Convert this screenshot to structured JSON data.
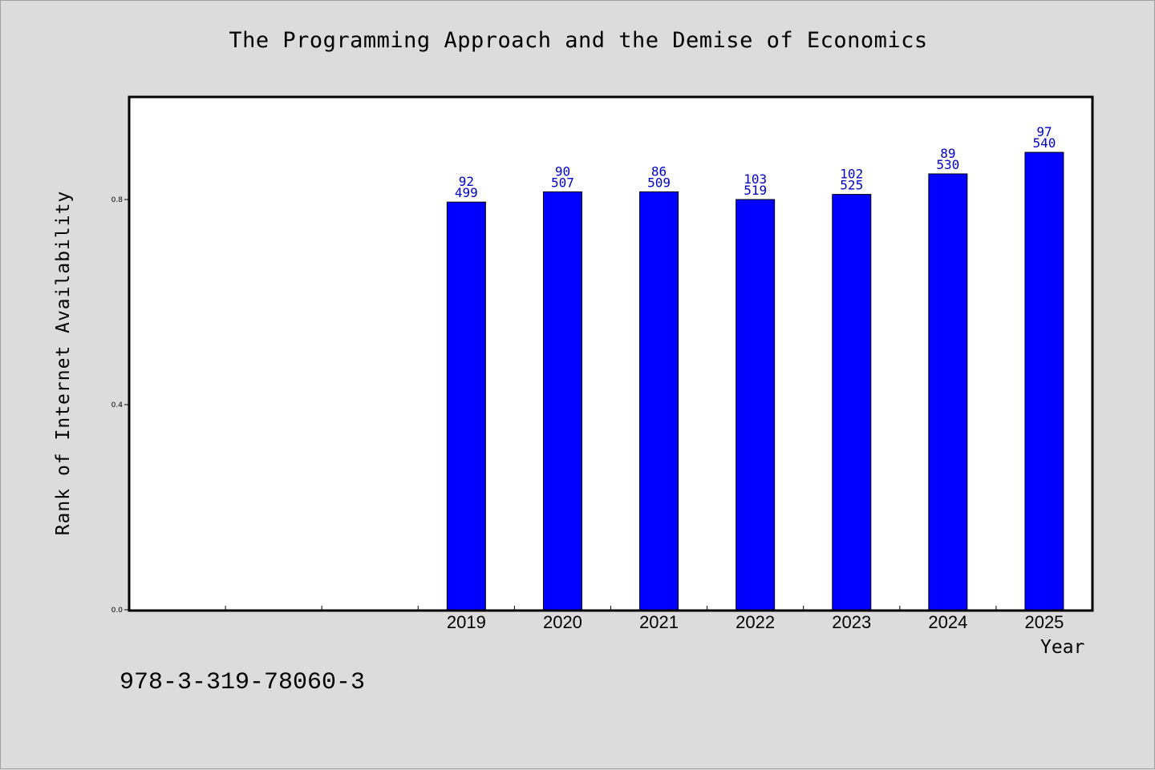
{
  "title": "The Programming Approach and the Demise of Economics",
  "isbn": "978-3-319-78060-3",
  "colors": {
    "bar": "#0000ff",
    "label": "#0000cc",
    "plot_bg": "#ffffff",
    "page_bg": "#dcdcdc"
  },
  "chart_data": {
    "type": "bar",
    "title": "The Programming Approach and the Demise of Economics",
    "xlabel": "Year",
    "ylabel": "Rank of Internet Availability",
    "x_slots": 10,
    "categories": [
      "2019",
      "2020",
      "2021",
      "2022",
      "2023",
      "2024",
      "2025"
    ],
    "series": [
      {
        "values": [
          0.795,
          0.815,
          0.815,
          0.8,
          0.81,
          0.85,
          0.892
        ],
        "label_top": [
          "92",
          "90",
          "86",
          "103",
          "102",
          "89",
          "97"
        ],
        "label_bottom": [
          "499",
          "507",
          "509",
          "519",
          "525",
          "530",
          "540"
        ]
      }
    ],
    "yticks": [
      "0.0",
      "0.4",
      "0.8"
    ],
    "ylim": [
      0,
      1.0
    ],
    "grid": false,
    "legend": "none"
  }
}
